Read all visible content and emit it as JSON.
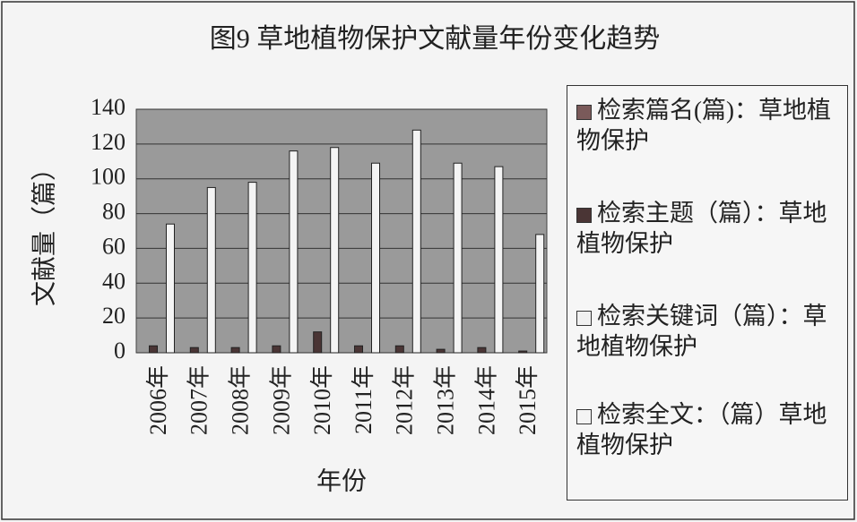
{
  "chart_data": {
    "type": "bar",
    "title": "图9 草地植物保护文献量年份变化趋势",
    "x_label": "年份",
    "y_label": "文献量（篇）",
    "categories": [
      "2006年",
      "2007年",
      "2008年",
      "2009年",
      "2010年",
      "2011年",
      "2012年",
      "2013年",
      "2014年",
      "2015年"
    ],
    "series": [
      {
        "name": "检索篇名(篇)：草地植物保护",
        "color": "#7a5a5a",
        "values": [
          0,
          0,
          0,
          0,
          0,
          0,
          0,
          0,
          0,
          0
        ]
      },
      {
        "name": "检索主题（篇）：草地植物保护",
        "color": "#4a3535",
        "values": [
          4,
          3,
          3,
          4,
          12,
          4,
          4,
          2,
          3,
          1
        ]
      },
      {
        "name": "检索关键词（篇）：草地植物保护",
        "color": "#f0f0f0",
        "values": [
          0,
          0,
          0,
          0,
          0,
          0,
          0,
          0,
          0,
          0
        ]
      },
      {
        "name": "检索全文：（篇）草地植物保护",
        "color": "#f4f4f4",
        "values": [
          74,
          95,
          98,
          116,
          118,
          109,
          128,
          109,
          107,
          68
        ]
      }
    ],
    "ylim": [
      0,
      140
    ],
    "yticks": [
      0,
      20,
      40,
      60,
      80,
      100,
      120,
      140
    ],
    "grid": true
  }
}
